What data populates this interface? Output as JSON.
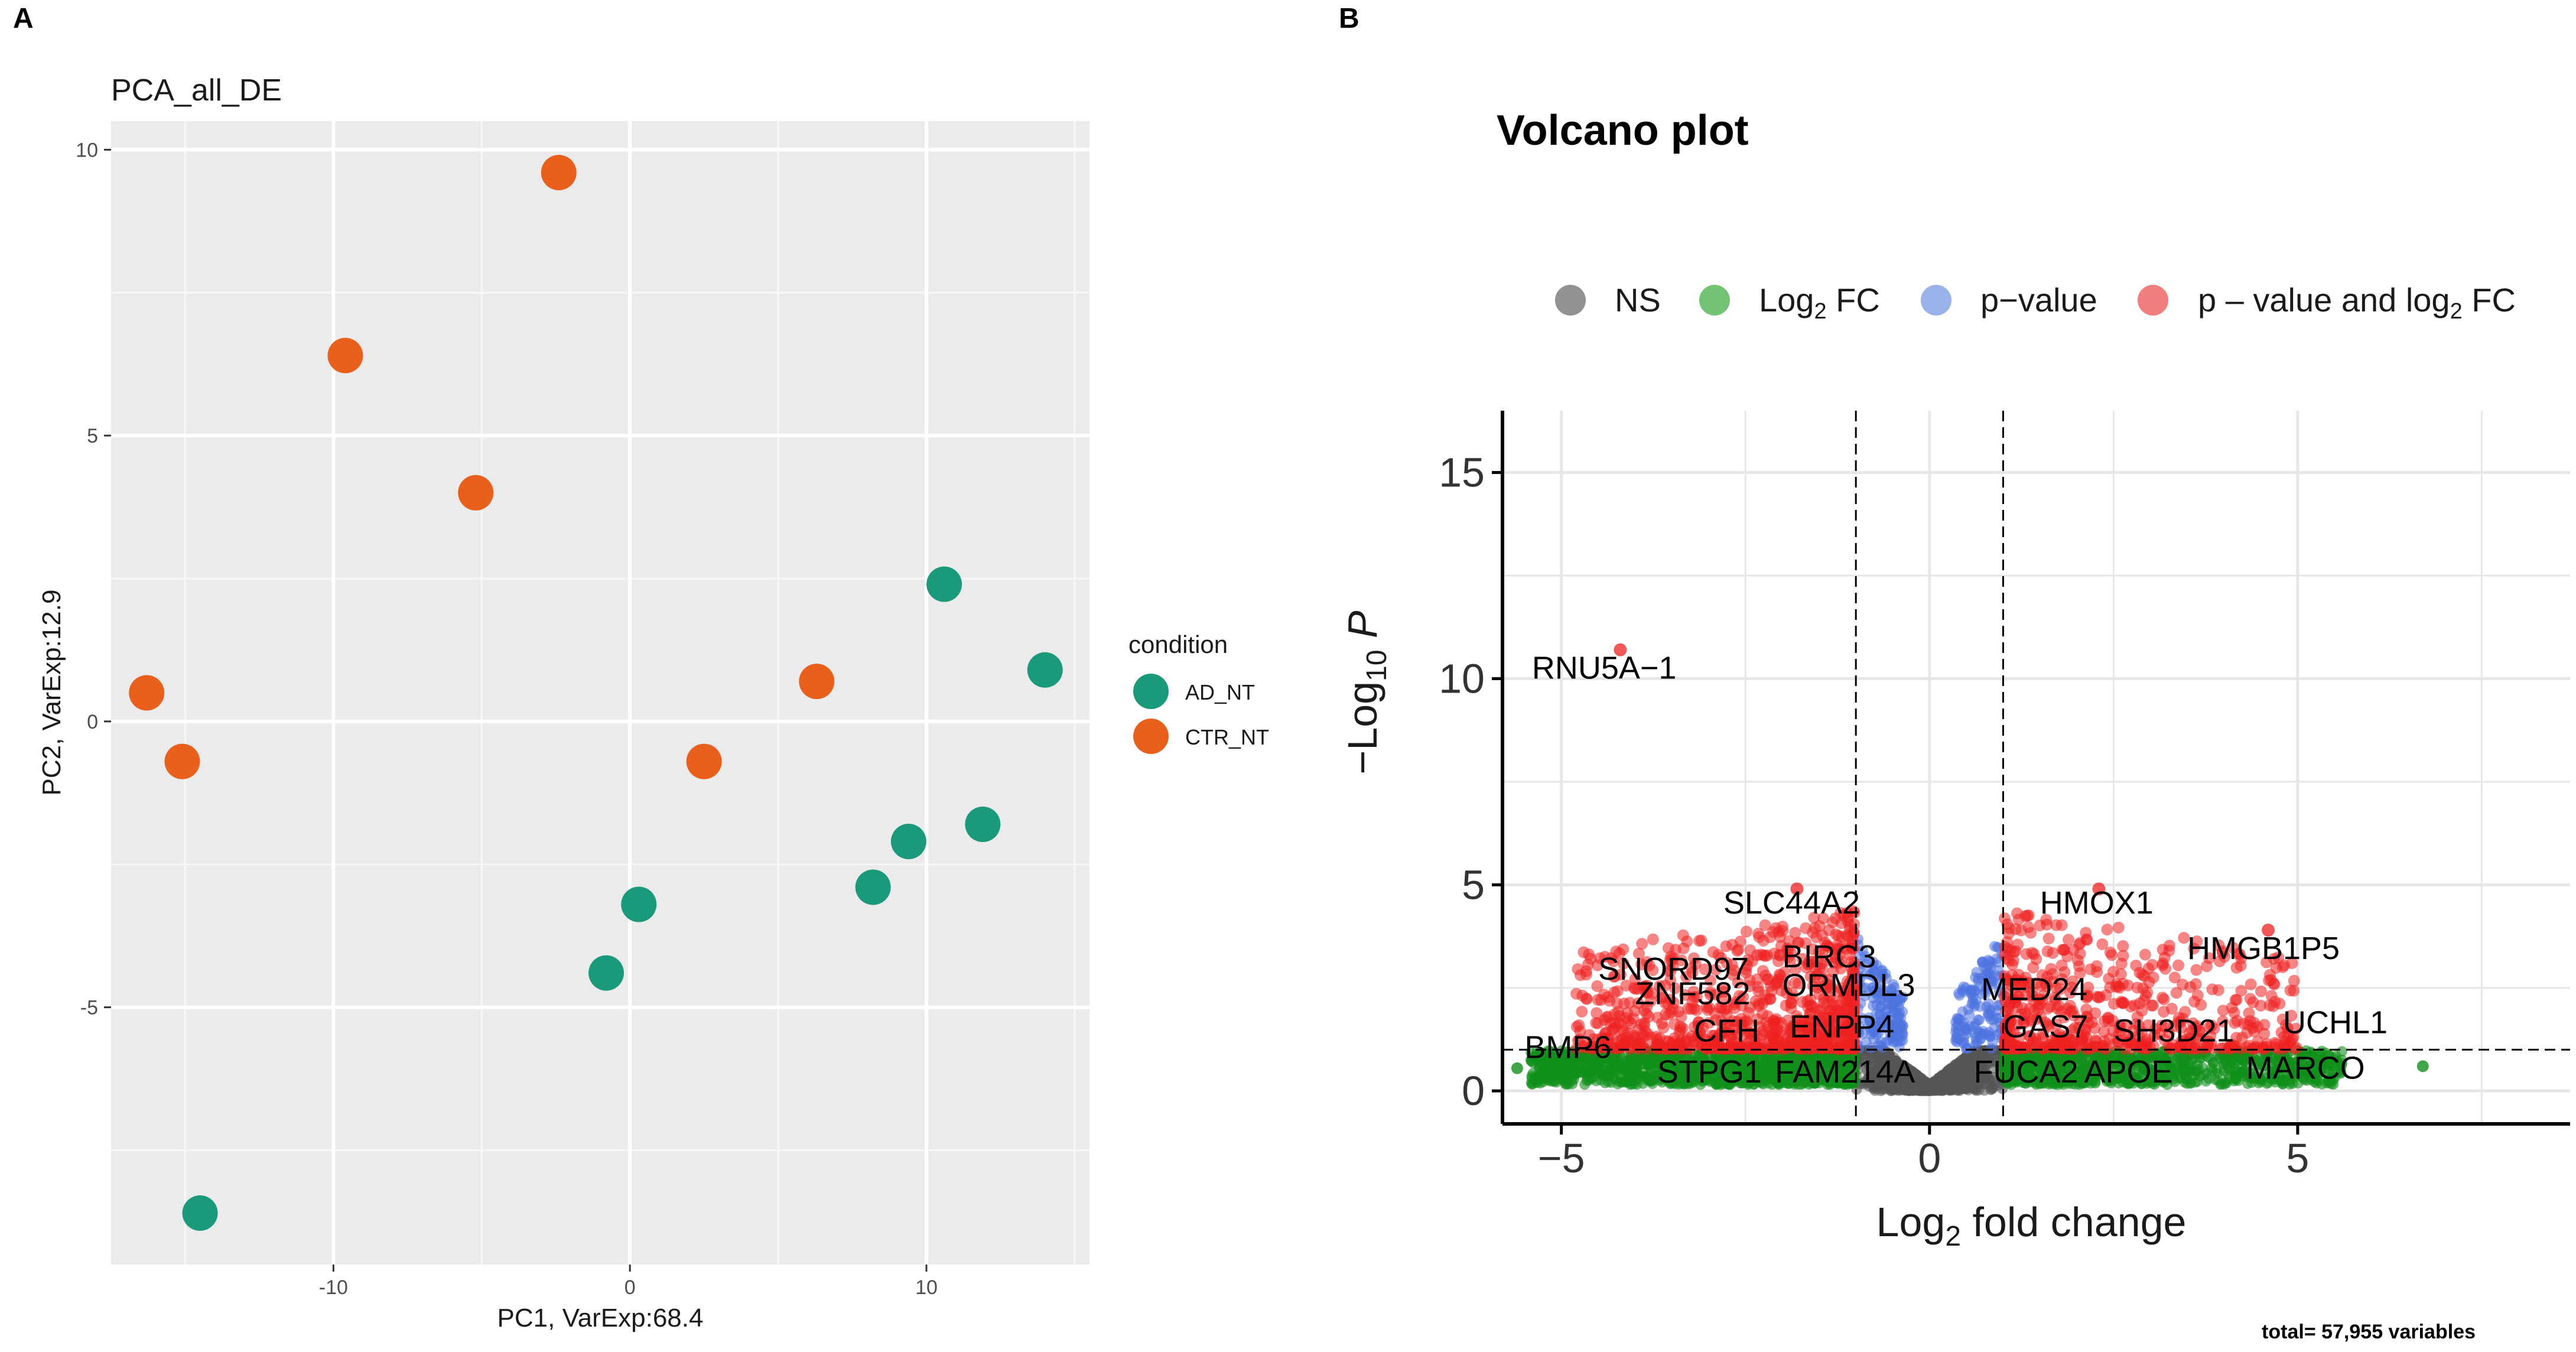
{
  "chart_data": [
    {
      "panel": "A",
      "type": "scatter",
      "title": "PCA_all_DE",
      "xlabel": "PC1, VarExp:68.4",
      "ylabel": "PC2, VarExp:12.9",
      "xlim": [
        -17.5,
        15.5
      ],
      "ylim": [
        -9.5,
        10.5
      ],
      "xticks": [
        -10,
        0,
        10
      ],
      "yticks": [
        10,
        5,
        0,
        -5
      ],
      "xtick_labels": [
        "-10",
        "0",
        "10"
      ],
      "ytick_labels": [
        "10",
        "5",
        "0",
        "-5"
      ],
      "legend": {
        "title": "condition",
        "position": "right",
        "entries": [
          {
            "label": "AD_NT",
            "color": "#009E73"
          },
          {
            "label": "CTR_NT",
            "color": "#E8601C"
          }
        ]
      },
      "series": [
        {
          "name": "AD_NT",
          "color": "#1A9A7B",
          "points": [
            [
              -14.5,
              -8.6
            ],
            [
              -0.8,
              -4.4
            ],
            [
              0.3,
              -3.2
            ],
            [
              8.2,
              -2.9
            ],
            [
              9.4,
              -2.1
            ],
            [
              11.9,
              -1.8
            ],
            [
              10.6,
              2.4
            ],
            [
              14.0,
              0.9
            ]
          ]
        },
        {
          "name": "CTR_NT",
          "color": "#E8601C",
          "points": [
            [
              -16.3,
              0.5
            ],
            [
              -15.1,
              -0.7
            ],
            [
              -9.6,
              6.4
            ],
            [
              -5.2,
              4.0
            ],
            [
              -2.4,
              9.6
            ],
            [
              2.5,
              -0.7
            ],
            [
              6.3,
              0.7
            ]
          ]
        }
      ]
    },
    {
      "panel": "B",
      "type": "scatter",
      "title": "Volcano plot",
      "xlabel": "Log2 fold change",
      "ylabel": "-Log10 P",
      "xlim": [
        -5.8,
        8.7
      ],
      "ylim": [
        -0.8,
        16.5
      ],
      "xticks": [
        -5,
        0,
        5
      ],
      "yticks": [
        0,
        5,
        10,
        15
      ],
      "xtick_labels": [
        "−5",
        "0",
        "5"
      ],
      "ytick_labels": [
        "0",
        "5",
        "10",
        "15"
      ],
      "fc_cutoff": 1,
      "p_cutoff": 1,
      "legend": {
        "position": "top",
        "entries": [
          {
            "label": "NS",
            "color": "#7F7F7F"
          },
          {
            "label": "Log2 FC",
            "color": "#5CB85C"
          },
          {
            "label": "p−value",
            "color": "#8FA8E8"
          },
          {
            "label": "p – value and log2 FC",
            "color": "#F07070"
          }
        ]
      },
      "highlight_points": [
        {
          "gene": "RNU5A−1",
          "x": -4.2,
          "y": 10.7
        },
        {
          "gene": "SLC44A2",
          "x": -1.8,
          "y": 4.9
        },
        {
          "gene": "HMOX1",
          "x": 2.3,
          "y": 4.9
        },
        {
          "gene": "HMGB1P5",
          "x": 4.6,
          "y": 3.9
        }
      ],
      "labels": [
        {
          "text": "RNU5A−1",
          "x": -5.4,
          "y": 10.0
        },
        {
          "text": "SLC44A2",
          "x": -2.8,
          "y": 4.3
        },
        {
          "text": "HMOX1",
          "x": 1.5,
          "y": 4.3
        },
        {
          "text": "HMGB1P5",
          "x": 3.5,
          "y": 3.2
        },
        {
          "text": "SNORD97",
          "x": -4.5,
          "y": 2.7
        },
        {
          "text": "BIRC3",
          "x": -2.0,
          "y": 3.0
        },
        {
          "text": "ZNF582",
          "x": -4.0,
          "y": 2.1
        },
        {
          "text": "ORMDL3",
          "x": -2.0,
          "y": 2.3
        },
        {
          "text": "MED24",
          "x": 0.7,
          "y": 2.2
        },
        {
          "text": "CFH",
          "x": -3.2,
          "y": 1.2
        },
        {
          "text": "ENPP4",
          "x": -1.9,
          "y": 1.3
        },
        {
          "text": "GAS7",
          "x": 1.0,
          "y": 1.3
        },
        {
          "text": "SH3D21",
          "x": 2.5,
          "y": 1.2
        },
        {
          "text": "UCHL1",
          "x": 4.8,
          "y": 1.4
        },
        {
          "text": "BMP6",
          "x": -5.5,
          "y": 0.8
        },
        {
          "text": "STPG1",
          "x": -3.7,
          "y": 0.2
        },
        {
          "text": "FAM214A",
          "x": -2.1,
          "y": 0.2
        },
        {
          "text": "FUCA2",
          "x": 0.6,
          "y": 0.2
        },
        {
          "text": "APOE",
          "x": 2.1,
          "y": 0.2
        },
        {
          "text": "MARCO",
          "x": 4.3,
          "y": 0.3
        }
      ]
    }
  ],
  "panels": {
    "a_letter": "A",
    "b_letter": "B"
  },
  "legend_text": {
    "ns": "NS",
    "log2fc": "Log",
    "log2fc_sub": "2",
    "log2fc_tail": " FC",
    "pvalue": "p−value",
    "both": "p – value and log",
    "both_sub": "2",
    "both_tail": " FC"
  },
  "axis_text": {
    "ylabel_pre": "−Log",
    "ylabel_sub": "10",
    "ylabel_var": " P",
    "xlabel_pre": "Log",
    "xlabel_sub": "2",
    "xlabel_tail": " fold change"
  },
  "footnote": "total= 57,955 variables"
}
